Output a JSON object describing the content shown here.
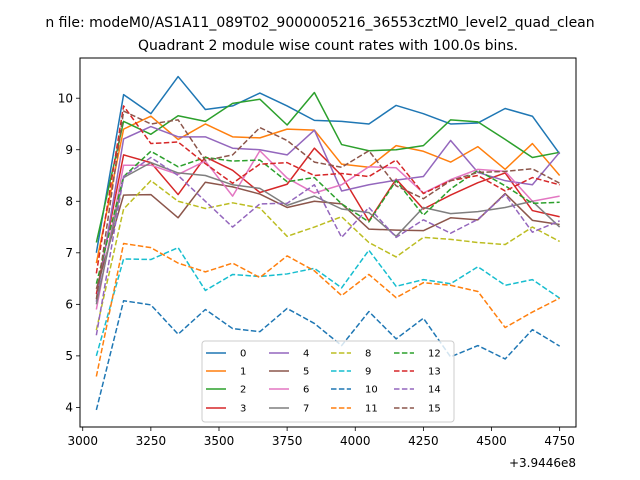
{
  "figure": {
    "suptitle": "n file: modeM0/AS1A11_089T02_9000005216_36553cztM0_level2_quad_clean"
  },
  "chart_data": {
    "type": "line",
    "title": "Quadrant 2 module wise count rates with 100.0s bins.",
    "xlabel": "",
    "ylabel": "",
    "x_offset_label": "+3.9446e8",
    "x": [
      3050,
      3150,
      3250,
      3350,
      3450,
      3550,
      3650,
      3750,
      3850,
      3950,
      4050,
      4150,
      4250,
      4350,
      4450,
      4550,
      4650,
      4750
    ],
    "xlim": [
      2990,
      4810
    ],
    "ylim": [
      3.62,
      10.78
    ],
    "xticks": [
      3000,
      3250,
      3500,
      3750,
      4000,
      4250,
      4500,
      4750
    ],
    "yticks": [
      4,
      5,
      6,
      7,
      8,
      9,
      10
    ],
    "grid": false,
    "legend": {
      "placement": "lower-center",
      "columns": 4
    },
    "series": [
      {
        "name": "0",
        "color": "#1f77b4",
        "style": "solid",
        "values": [
          7.0,
          10.07,
          9.7,
          10.42,
          9.78,
          9.85,
          10.1,
          9.85,
          9.57,
          9.55,
          9.5,
          9.86,
          9.7,
          9.5,
          9.52,
          9.8,
          9.65,
          8.92
        ]
      },
      {
        "name": "1",
        "color": "#ff7f0e",
        "style": "solid",
        "values": [
          6.8,
          9.4,
          9.65,
          9.2,
          9.5,
          9.25,
          9.23,
          9.4,
          9.38,
          8.72,
          8.66,
          9.08,
          8.97,
          8.76,
          9.06,
          8.62,
          9.12,
          8.5
        ]
      },
      {
        "name": "2",
        "color": "#2ca02c",
        "style": "solid",
        "values": [
          7.2,
          9.55,
          9.3,
          9.66,
          9.55,
          9.9,
          9.98,
          9.48,
          10.11,
          9.1,
          8.98,
          9.0,
          9.08,
          9.58,
          9.54,
          9.2,
          8.85,
          8.95
        ]
      },
      {
        "name": "3",
        "color": "#d62728",
        "style": "solid",
        "values": [
          6.2,
          8.9,
          8.75,
          8.13,
          8.86,
          8.6,
          8.17,
          8.33,
          9.03,
          8.5,
          7.62,
          8.43,
          7.85,
          8.12,
          8.36,
          8.55,
          7.82,
          7.7
        ]
      },
      {
        "name": "4",
        "color": "#9467bd",
        "style": "solid",
        "values": [
          6.05,
          9.21,
          9.45,
          9.25,
          9.25,
          9.03,
          9.0,
          8.9,
          9.38,
          8.2,
          8.32,
          8.41,
          8.48,
          9.18,
          8.56,
          8.4,
          8.32,
          8.95
        ]
      },
      {
        "name": "5",
        "color": "#8c564b",
        "style": "solid",
        "values": [
          6.3,
          8.12,
          8.13,
          7.68,
          8.37,
          8.28,
          8.14,
          7.88,
          8.0,
          7.95,
          7.46,
          7.44,
          7.43,
          7.68,
          7.64,
          8.15,
          7.63,
          7.55
        ]
      },
      {
        "name": "6",
        "color": "#e377c2",
        "style": "solid",
        "values": [
          5.9,
          8.7,
          8.7,
          8.52,
          8.78,
          8.1,
          8.98,
          8.45,
          8.16,
          8.32,
          8.67,
          8.65,
          8.16,
          8.42,
          8.62,
          8.58,
          8.0,
          8.1
        ]
      },
      {
        "name": "7",
        "color": "#7f7f7f",
        "style": "solid",
        "values": [
          6.0,
          8.46,
          8.75,
          8.55,
          8.5,
          8.32,
          8.25,
          7.92,
          8.1,
          7.85,
          7.78,
          7.32,
          7.88,
          7.76,
          7.8,
          7.88,
          8.0,
          7.5
        ]
      },
      {
        "name": "8",
        "color": "#bcbd22",
        "style": "dashed",
        "values": [
          5.5,
          7.85,
          8.4,
          8.0,
          7.86,
          7.97,
          7.87,
          7.32,
          7.5,
          7.7,
          7.2,
          6.92,
          7.3,
          7.26,
          7.2,
          7.16,
          7.5,
          7.22
        ]
      },
      {
        "name": "9",
        "color": "#17becf",
        "style": "dashed",
        "values": [
          5.0,
          6.88,
          6.87,
          7.1,
          6.27,
          6.58,
          6.54,
          6.59,
          6.7,
          6.32,
          7.05,
          6.35,
          6.48,
          6.4,
          6.73,
          6.37,
          6.48,
          6.12
        ]
      },
      {
        "name": "10",
        "color": "#1f77b4",
        "style": "dashed",
        "values": [
          3.95,
          6.07,
          5.99,
          5.42,
          5.9,
          5.53,
          5.47,
          5.92,
          5.63,
          5.2,
          5.86,
          5.33,
          5.73,
          4.98,
          5.2,
          4.94,
          5.51,
          5.19
        ]
      },
      {
        "name": "11",
        "color": "#ff7f0e",
        "style": "dashed",
        "values": [
          4.6,
          7.18,
          7.1,
          6.8,
          6.63,
          6.8,
          6.52,
          6.94,
          6.65,
          6.17,
          6.58,
          6.13,
          6.42,
          6.37,
          6.25,
          5.55,
          5.85,
          6.12
        ]
      },
      {
        "name": "12",
        "color": "#2ca02c",
        "style": "dashed",
        "values": [
          6.4,
          8.48,
          8.97,
          8.67,
          8.85,
          8.78,
          8.8,
          8.38,
          8.46,
          7.95,
          7.6,
          8.4,
          7.73,
          8.24,
          8.6,
          8.3,
          7.96,
          7.98
        ]
      },
      {
        "name": "13",
        "color": "#d62728",
        "style": "dashed",
        "values": [
          6.6,
          9.85,
          9.12,
          9.15,
          8.73,
          8.35,
          8.72,
          8.75,
          8.5,
          8.54,
          8.48,
          8.8,
          8.15,
          8.4,
          8.5,
          8.2,
          8.46,
          8.32
        ]
      },
      {
        "name": "14",
        "color": "#9467bd",
        "style": "dashed",
        "values": [
          5.4,
          8.48,
          8.85,
          8.5,
          8.0,
          7.5,
          7.95,
          7.96,
          8.32,
          7.3,
          7.88,
          7.3,
          7.64,
          7.38,
          7.65,
          8.13,
          7.4,
          7.62
        ]
      },
      {
        "name": "15",
        "color": "#8c564b",
        "style": "dashed",
        "values": [
          6.1,
          9.75,
          9.5,
          9.58,
          8.79,
          8.9,
          9.43,
          9.18,
          8.76,
          8.66,
          8.98,
          8.3,
          8.05,
          8.4,
          8.56,
          8.58,
          8.63,
          8.35
        ]
      }
    ]
  }
}
